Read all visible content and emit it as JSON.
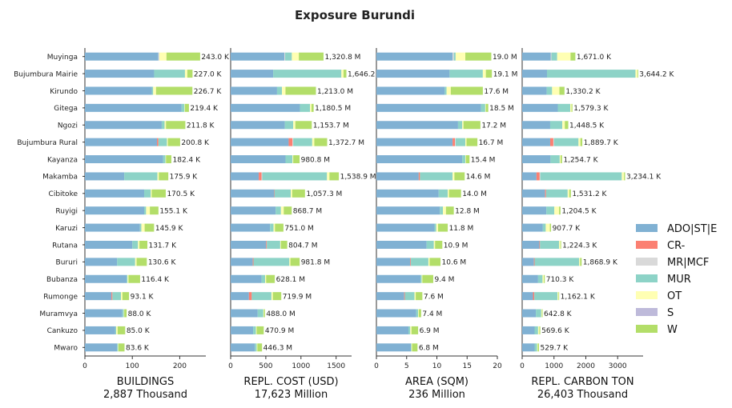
{
  "title": "Exposure Burundi",
  "colors": {
    "ADO|ST|E": "#80b1d3",
    "CR-": "#fb8072",
    "MR|MCF": "#d9d9d9",
    "MUR": "#8dd3c7",
    "OT": "#ffffb3",
    "S": "#bebada",
    "W": "#b3de69"
  },
  "chart_data": {
    "type": "bar",
    "categories": [
      "Muyinga",
      "Bujumbura Mairie",
      "Kirundo",
      "Gitega",
      "Ngozi",
      "Bujumbura Rural",
      "Kayanza",
      "Makamba",
      "Cibitoke",
      "Ruyigi",
      "Karuzi",
      "Rutana",
      "Bururi",
      "Bubanza",
      "Rumonge",
      "Muramvya",
      "Cankuzo",
      "Mwaro"
    ],
    "legend": [
      "ADO|ST|E",
      "CR-",
      "MR|MCF",
      "MUR",
      "OT",
      "S",
      "W"
    ],
    "legend_position": "right",
    "panels": [
      {
        "xlabel": "BUILDINGS",
        "subtitle": "2,887 Thousand",
        "xlim": [
          0,
          255
        ],
        "xticks": [
          0,
          100,
          200
        ],
        "tick_labels": [
          "0",
          "100",
          "200"
        ],
        "totals": [
          243.0,
          227.0,
          226.7,
          219.4,
          211.8,
          200.8,
          182.4,
          175.9,
          170.5,
          155.1,
          145.9,
          131.7,
          130.6,
          116.4,
          93.1,
          88.0,
          85.0,
          83.6
        ],
        "value_labels": [
          "243.0 K",
          "227.0 K",
          "226.7 K",
          "219.4 K",
          "211.8 K",
          "200.8 K",
          "182.4 K",
          "175.9 K",
          "170.5 K",
          "155.1 K",
          "145.9 K",
          "131.7 K",
          "130.6 K",
          "116.4 K",
          "93.1 K",
          "88.0 K",
          "85.0 K",
          "83.6 K"
        ],
        "segments": [
          [
            155,
            0,
            2,
            0,
            15,
            0,
            71
          ],
          [
            146,
            0,
            0,
            65,
            5,
            0,
            11
          ],
          [
            141,
            0,
            0,
            3,
            6,
            0,
            76.7
          ],
          [
            204,
            0,
            0,
            6,
            1,
            0,
            8.4
          ],
          [
            162,
            0,
            0,
            6,
            3,
            0,
            40.8
          ],
          [
            152,
            3,
            0,
            18,
            2,
            0,
            25.8
          ],
          [
            165,
            0,
            0,
            5,
            1,
            0,
            11.4
          ],
          [
            83,
            0,
            0,
            70,
            3,
            0,
            19.9
          ],
          [
            125,
            0,
            0,
            14,
            2,
            0,
            29.5
          ],
          [
            125,
            0,
            0,
            4,
            8,
            0,
            18.1
          ],
          [
            116,
            0,
            0,
            3,
            7,
            0,
            19.9
          ],
          [
            100,
            0,
            0,
            12,
            3,
            0,
            16.7
          ],
          [
            68,
            0,
            0,
            38,
            3,
            0,
            21.6
          ],
          [
            88,
            0,
            0,
            2,
            2,
            0,
            24.4
          ],
          [
            56,
            2,
            0,
            18,
            3,
            0,
            14.1
          ],
          [
            79,
            0,
            0,
            3,
            1,
            0,
            5.0
          ],
          [
            64,
            0,
            0,
            2,
            3,
            0,
            16.0
          ],
          [
            68,
            0,
            0,
            2,
            1,
            0,
            12.6
          ]
        ]
      },
      {
        "xlabel": "REPL. COST (USD)",
        "subtitle": "17,623 Million",
        "xlim": [
          0,
          1720
        ],
        "xticks": [
          0,
          500,
          1000,
          1500
        ],
        "tick_labels": [
          "0",
          "500",
          "1000",
          "1500"
        ],
        "totals": [
          1320.8,
          1646.2,
          1213.0,
          1180.5,
          1153.7,
          1372.7,
          980.8,
          1538.9,
          1057.3,
          868.7,
          751.0,
          804.7,
          981.8,
          628.1,
          719.9,
          488.0,
          470.9,
          446.3
        ],
        "value_labels": [
          "1,320.8 M",
          "1,646.2",
          "1,213.0 M",
          "1,180.5 M",
          "1,153.7 M",
          "1,372.7 M",
          "980.8 M",
          "1,538.9 M",
          "1,057.3 M",
          "868.7 M",
          "751.0 M",
          "804.7 M",
          "981.8 M",
          "628.1 M",
          "719.9 M",
          "488.0 M",
          "470.9 M",
          "446.3 M"
        ],
        "segments": [
          [
            765,
            0,
            10,
            95,
            100,
            0,
            350.8
          ],
          [
            605,
            0,
            0,
            970,
            30,
            0,
            41.2
          ],
          [
            660,
            0,
            0,
            70,
            50,
            0,
            433.0
          ],
          [
            985,
            0,
            0,
            145,
            20,
            0,
            30.5
          ],
          [
            770,
            0,
            0,
            120,
            30,
            0,
            233.7
          ],
          [
            825,
            55,
            10,
            270,
            30,
            0,
            182.7
          ],
          [
            780,
            0,
            0,
            100,
            10,
            0,
            90.8
          ],
          [
            400,
            40,
            10,
            920,
            35,
            0,
            133.9
          ],
          [
            620,
            5,
            0,
            230,
            20,
            0,
            182.3
          ],
          [
            640,
            0,
            0,
            75,
            40,
            0,
            113.7
          ],
          [
            560,
            0,
            0,
            50,
            20,
            0,
            121.0
          ],
          [
            505,
            10,
            0,
            190,
            10,
            0,
            89.7
          ],
          [
            315,
            10,
            0,
            510,
            15,
            0,
            131.8
          ],
          [
            440,
            0,
            0,
            50,
            15,
            0,
            123.1
          ],
          [
            260,
            40,
            0,
            280,
            20,
            0,
            119.9
          ],
          [
            385,
            0,
            0,
            80,
            8,
            0,
            15.0
          ],
          [
            320,
            0,
            0,
            40,
            10,
            0,
            100.9
          ],
          [
            345,
            0,
            0,
            25,
            10,
            0,
            66.3
          ]
        ]
      },
      {
        "xlabel": "AREA (SQM)",
        "subtitle": "236 Million",
        "xlim": [
          0,
          20
        ],
        "xticks": [
          0,
          5,
          10,
          15,
          20
        ],
        "tick_labels": [
          "0",
          "5",
          "10",
          "15",
          "20"
        ],
        "totals": [
          19.0,
          19.1,
          17.6,
          18.5,
          17.2,
          16.7,
          15.4,
          14.6,
          14.0,
          12.8,
          11.8,
          10.9,
          10.6,
          9.4,
          7.6,
          7.4,
          6.9,
          6.8
        ],
        "value_labels": [
          "19.0 M",
          "19.1 M",
          "17.6 M",
          "18.5 M",
          "17.2 M",
          "16.7 M",
          "15.4 M",
          "14.6 M",
          "14.0 M",
          "12.8 M",
          "11.8 M",
          "10.9 M",
          "10.6 M",
          "9.4 M",
          "7.6 M",
          "7.4 M",
          "6.9 M",
          "6.8 M"
        ],
        "segments": [
          [
            12.6,
            0,
            0.2,
            0.3,
            1.6,
            0,
            4.3
          ],
          [
            12.1,
            0,
            0,
            5.5,
            0.5,
            0,
            1.0
          ],
          [
            11.3,
            0,
            0,
            0.3,
            0.7,
            0,
            5.3
          ],
          [
            17.3,
            0,
            0,
            0.7,
            0.1,
            0,
            0.4
          ],
          [
            13.5,
            0,
            0,
            0.7,
            0.2,
            0,
            2.8
          ],
          [
            12.6,
            0.4,
            0.1,
            1.6,
            0.2,
            0,
            1.8
          ],
          [
            14.2,
            0,
            0,
            0.5,
            0.1,
            0,
            0.6
          ],
          [
            7.0,
            0.2,
            0,
            5.4,
            0.3,
            0,
            1.7
          ],
          [
            10.3,
            0,
            0,
            1.5,
            0.2,
            0,
            2.0
          ],
          [
            10.5,
            0,
            0,
            0.5,
            0.5,
            0,
            1.3
          ],
          [
            9.6,
            0,
            0,
            0.3,
            0.3,
            0,
            1.6
          ],
          [
            8.3,
            0,
            0,
            1.2,
            0.2,
            0,
            1.2
          ],
          [
            5.6,
            0.1,
            0,
            2.9,
            0.2,
            0,
            1.8
          ],
          [
            7.3,
            0,
            0,
            0.2,
            0.1,
            0,
            1.8
          ],
          [
            4.6,
            0.1,
            0,
            1.6,
            0.2,
            0,
            1.1
          ],
          [
            6.6,
            0,
            0,
            0.3,
            0.1,
            0,
            0.4
          ],
          [
            5.3,
            0,
            0,
            0.3,
            0.2,
            0,
            1.1
          ],
          [
            5.7,
            0,
            0,
            0.1,
            0.1,
            0,
            0.9
          ]
        ]
      },
      {
        "xlabel": "REPL. CARBON TON",
        "subtitle": "26,403 Thousand",
        "xlim": [
          0,
          3800
        ],
        "xticks": [
          0,
          1000,
          2000,
          3000
        ],
        "tick_labels": [
          "0",
          "1000",
          "2000",
          "3000"
        ],
        "totals": [
          1671.0,
          3644.2,
          1330.2,
          1579.3,
          1448.5,
          1889.7,
          1254.7,
          3234.1,
          1531.2,
          1204.5,
          907.7,
          1224.3,
          1868.9,
          710.3,
          1162.1,
          642.8,
          569.6,
          529.7
        ],
        "value_labels": [
          "1,671.0 K",
          "3,644.2 K",
          "1,330.2 K",
          "1,579.3 K",
          "1,448.5 K",
          "1,889.7 K",
          "1,254.7 K",
          "3,234.1 K",
          "1,531.2 K",
          "1,204.5 K",
          "907.7 K",
          "1,224.3 K",
          "1,868.9 K",
          "710.3 K",
          "1,162.1 K",
          "642.8 K",
          "569.6 K",
          "529.7 K"
        ],
        "segments": [
          [
            900,
            0,
            20,
            180,
            420,
            0,
            151.0
          ],
          [
            780,
            0,
            0,
            2780,
            60,
            0,
            24.2
          ],
          [
            770,
            0,
            0,
            170,
            230,
            0,
            160.2
          ],
          [
            1120,
            0,
            0,
            390,
            40,
            0,
            29.3
          ],
          [
            880,
            0,
            0,
            380,
            80,
            0,
            108.5
          ],
          [
            880,
            100,
            20,
            770,
            60,
            0,
            59.7
          ],
          [
            890,
            0,
            0,
            290,
            30,
            0,
            44.7
          ],
          [
            450,
            100,
            20,
            2560,
            70,
            0,
            34.1
          ],
          [
            720,
            30,
            0,
            680,
            50,
            0,
            51.2
          ],
          [
            760,
            0,
            0,
            250,
            150,
            0,
            44.5
          ],
          [
            650,
            0,
            0,
            90,
            130,
            0,
            37.7
          ],
          [
            540,
            20,
            0,
            600,
            40,
            0,
            24.3
          ],
          [
            370,
            20,
            0,
            1400,
            30,
            0,
            48.9
          ],
          [
            500,
            0,
            0,
            140,
            40,
            0,
            30.3
          ],
          [
            340,
            40,
            0,
            730,
            30,
            0,
            22.1
          ],
          [
            430,
            0,
            0,
            170,
            20,
            0,
            22.8
          ],
          [
            390,
            0,
            0,
            110,
            40,
            0,
            29.6
          ],
          [
            390,
            0,
            0,
            80,
            20,
            0,
            39.7
          ]
        ]
      }
    ]
  }
}
